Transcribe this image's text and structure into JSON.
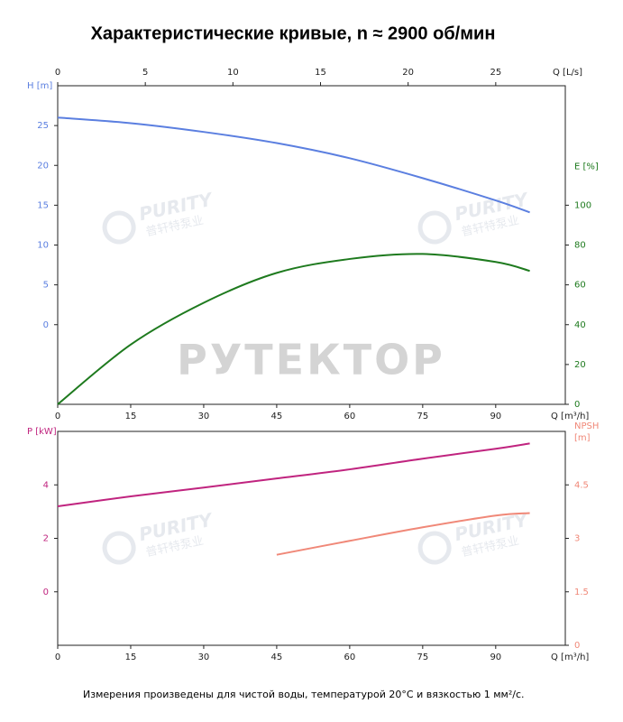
{
  "title": "Характеристические кривые, n ≈ 2900 об/мин",
  "footnote": "Измерения произведены для чистой воды, температурой 20°C и вязкостью 1 мм²/с.",
  "watermark": "РУТЕКТОР",
  "logo_text": "PURITY",
  "logo_subtext": "普轩特泵业",
  "chart_data": [
    {
      "type": "line",
      "xlabel": "Q [m³/h]",
      "x2label": "Q [L/s]",
      "ylabel": "H [m]",
      "y2label": [
        "E [%]"
      ],
      "x": [
        0,
        15,
        30,
        45,
        60,
        75,
        90,
        97
      ],
      "xlim": [
        0,
        104.3
      ],
      "xticks": [
        0,
        15,
        30,
        45,
        60,
        75,
        90
      ],
      "x2lim": [
        0,
        28.97
      ],
      "x2ticks": [
        0,
        5,
        10,
        15,
        20,
        25
      ],
      "ylim": [
        -10,
        30
      ],
      "yticks": [
        0,
        5,
        10,
        15,
        20,
        25
      ],
      "y2lim": [
        0,
        160
      ],
      "y2ticks": [
        0,
        20,
        40,
        60,
        80,
        100
      ],
      "series": [
        {
          "name": "H",
          "color": "#5b7fe0",
          "values": [
            26,
            25.3,
            24.2,
            22.8,
            20.9,
            18.4,
            15.6,
            14.1
          ]
        },
        {
          "name": "E",
          "color": "#1e7a1e",
          "axis": "y2",
          "values": [
            0,
            30,
            51,
            66,
            73,
            75.5,
            71.5,
            67
          ]
        }
      ]
    },
    {
      "type": "line",
      "xlabel": "Q [m³/h]",
      "ylabel": "P [kW]",
      "y2label": [
        "NPSH",
        "[m]"
      ],
      "x": [
        0,
        15,
        30,
        45,
        60,
        75,
        90,
        97
      ],
      "xlim": [
        0,
        104.3
      ],
      "xticks": [
        0,
        15,
        30,
        45,
        60,
        75,
        90
      ],
      "ylim": [
        -2,
        6
      ],
      "yticks": [
        0,
        2,
        4
      ],
      "y2lim": [
        0,
        6
      ],
      "y2ticks": [
        0,
        1.5,
        3,
        4.5
      ],
      "series": [
        {
          "name": "P",
          "color": "#c0247f",
          "values": [
            3.2,
            3.57,
            3.9,
            4.24,
            4.58,
            4.98,
            5.35,
            5.55
          ]
        },
        {
          "name": "NPSH",
          "color": "#f08878",
          "axis": "y2",
          "values": [
            null,
            null,
            null,
            2.54,
            2.93,
            3.31,
            3.64,
            3.71
          ]
        }
      ]
    }
  ]
}
